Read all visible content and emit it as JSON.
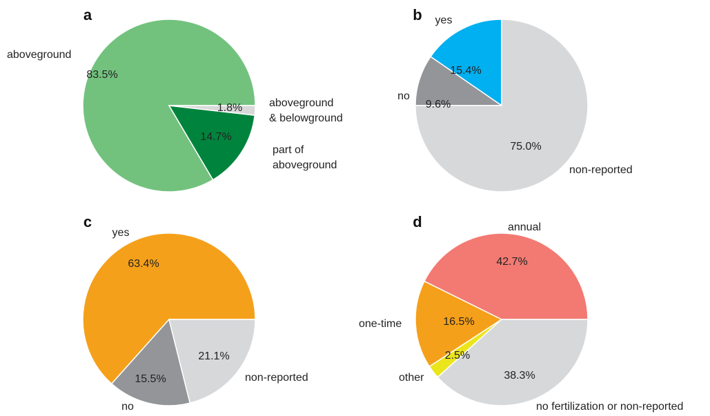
{
  "chart_data": [
    {
      "type": "pie",
      "title": "a",
      "startangle": 0,
      "categories": [
        "aboveground",
        "part of\naboveground",
        "aboveground\n& belowground"
      ],
      "values": [
        83.5,
        14.7,
        1.8
      ],
      "value_labels": [
        "83.5%",
        "14.7%",
        "1.8%"
      ],
      "colors": [
        "#72c27e",
        "#00843d",
        "#d9d9d9"
      ]
    },
    {
      "type": "pie",
      "title": "b",
      "startangle": 90,
      "categories": [
        "yes",
        "no",
        "non-reported"
      ],
      "values": [
        15.4,
        9.6,
        75.0
      ],
      "value_labels": [
        "15.4%",
        "9.6%",
        "75.0%"
      ],
      "colors": [
        "#00b0f0",
        "#939598",
        "#d7d8da"
      ]
    },
    {
      "type": "pie",
      "title": "c",
      "startangle": 0,
      "categories": [
        "yes",
        "no",
        "non-reported"
      ],
      "values": [
        63.4,
        15.5,
        21.1
      ],
      "value_labels": [
        "63.4%",
        "15.5%",
        "21.1%"
      ],
      "colors": [
        "#f5a01a",
        "#939598",
        "#d7d8da"
      ]
    },
    {
      "type": "pie",
      "title": "d",
      "startangle": 0,
      "categories": [
        "annual",
        "one-time",
        "other",
        "no fertilization or non-reported"
      ],
      "values": [
        42.7,
        16.5,
        2.5,
        38.3
      ],
      "value_labels": [
        "42.7%",
        "16.5%",
        "2.5%",
        "38.3%"
      ],
      "colors": [
        "#f27a72",
        "#f5a01a",
        "#ebe51c",
        "#d7d8da"
      ]
    }
  ]
}
